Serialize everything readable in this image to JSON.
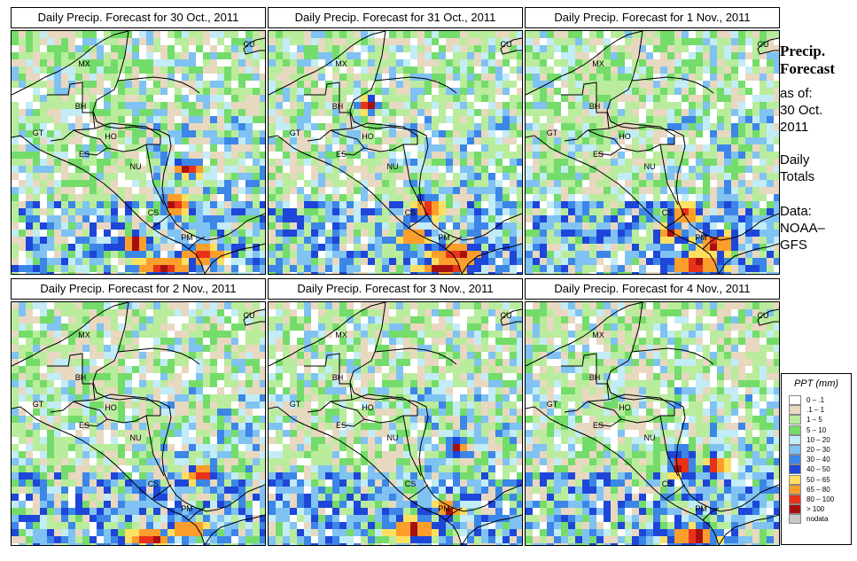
{
  "panels": [
    {
      "id": "p1",
      "title": "Daily Precip. Forecast for  30 Oct., 2011"
    },
    {
      "id": "p2",
      "title": "Daily Precip. Forecast for  31 Oct., 2011"
    },
    {
      "id": "p3",
      "title": "Daily Precip. Forecast for  1 Nov., 2011"
    },
    {
      "id": "p4",
      "title": "Daily Precip. Forecast for  2 Nov., 2011"
    },
    {
      "id": "p5",
      "title": "Daily Precip. Forecast for  3 Nov., 2011"
    },
    {
      "id": "p6",
      "title": "Daily Precip. Forecast for  4 Nov., 2011"
    }
  ],
  "country_labels": [
    "MX",
    "CU",
    "BH",
    "GT",
    "HO",
    "ES",
    "NU",
    "CS",
    "PM"
  ],
  "side": {
    "title_line1": "Precip.",
    "title_line2": "Forecast",
    "asof_line1": "as of:",
    "asof_line2": "30 Oct.",
    "asof_line3": "2011",
    "totals_line1": "Daily",
    "totals_line2": "Totals",
    "data_line1": "Data:",
    "data_line2": "NOAA–",
    "data_line3": "GFS"
  },
  "legend": {
    "title": "PPT (mm)",
    "items": [
      {
        "label": "0 – .1",
        "color": "#ffffff"
      },
      {
        "label": ".1 – 1",
        "color": "#e8d8c0"
      },
      {
        "label": "1 – 5",
        "color": "#b9ec9c"
      },
      {
        "label": "5 – 10",
        "color": "#74dc6a"
      },
      {
        "label": "10 – 20",
        "color": "#c2ecf6"
      },
      {
        "label": "20 – 30",
        "color": "#80c2f2"
      },
      {
        "label": "30 – 40",
        "color": "#3c86e8"
      },
      {
        "label": "40 – 50",
        "color": "#1e46d8"
      },
      {
        "label": "50 – 65",
        "color": "#fde062"
      },
      {
        "label": "65 – 80",
        "color": "#fb9e2c"
      },
      {
        "label": "80 – 100",
        "color": "#e8321a"
      },
      {
        "label": "> 100",
        "color": "#a81010"
      },
      {
        "label": "nodata",
        "color": "#c8c8c8"
      }
    ]
  }
}
